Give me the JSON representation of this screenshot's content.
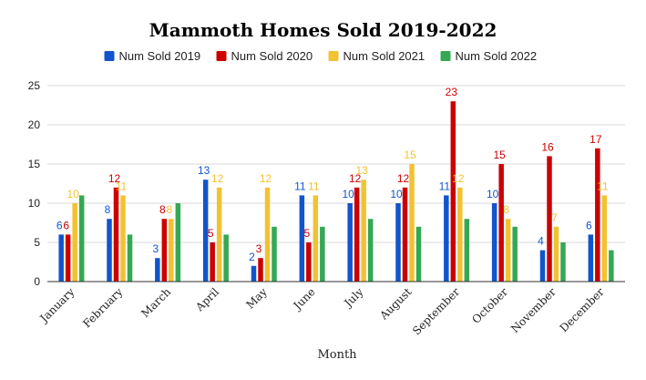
{
  "chart_data": {
    "type": "bar",
    "title": "Mammoth Homes Sold 2019-2022",
    "xlabel": "Month",
    "ylabel": "",
    "ylim": [
      0,
      25
    ],
    "yticks": [
      0,
      5,
      10,
      15,
      20,
      25
    ],
    "grid": true,
    "legend_position": "top",
    "categories": [
      "January",
      "February",
      "March",
      "April",
      "May",
      "June",
      "July",
      "August",
      "September",
      "October",
      "November",
      "December"
    ],
    "series": [
      {
        "name": "Num Sold 2019",
        "color": "#1155cc",
        "values": [
          6,
          8,
          3,
          13,
          2,
          11,
          10,
          10,
          11,
          10,
          4,
          6
        ]
      },
      {
        "name": "Num Sold 2020",
        "color": "#cc0000",
        "values": [
          6,
          12,
          8,
          5,
          3,
          5,
          12,
          12,
          23,
          15,
          16,
          17
        ]
      },
      {
        "name": "Num Sold 2021",
        "color": "#f1c232",
        "values": [
          10,
          11,
          8,
          12,
          12,
          11,
          13,
          15,
          12,
          8,
          7,
          11
        ]
      },
      {
        "name": "Num Sold 2022",
        "color": "#34a853",
        "values": [
          11,
          6,
          10,
          6,
          7,
          7,
          8,
          7,
          8,
          7,
          5,
          4
        ]
      }
    ],
    "data_labels_series": [
      0,
      1,
      2
    ]
  }
}
